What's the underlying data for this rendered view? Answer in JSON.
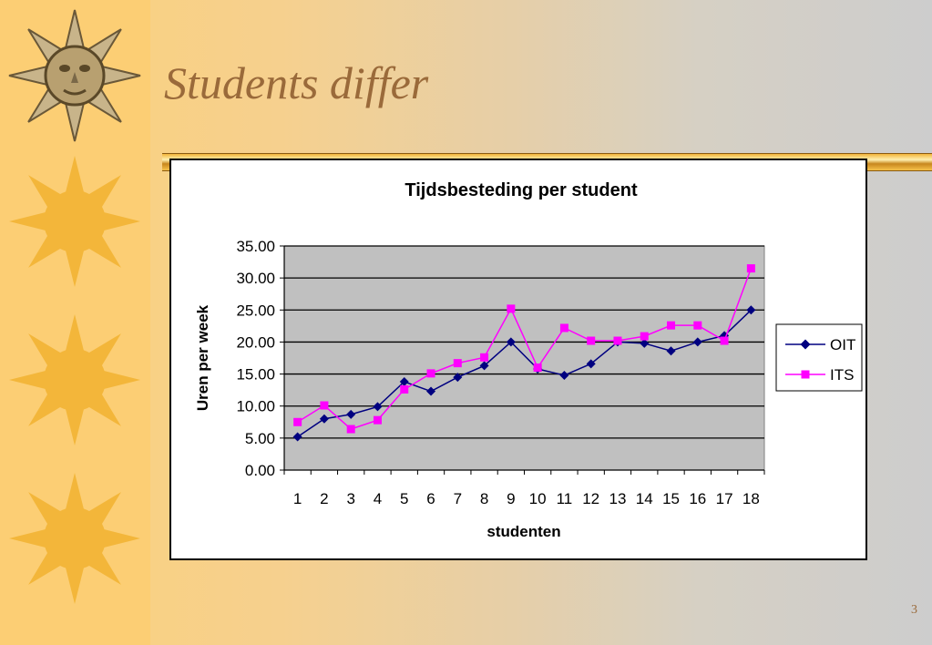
{
  "slide": {
    "title": "Students differ",
    "page_number": "3"
  },
  "colors": {
    "title": "#9a6a3a",
    "plot_bg": "#c0c0c0",
    "oit": "#000080",
    "its": "#ff00ff"
  },
  "icons": [
    "sun-face-icon",
    "sun-icon",
    "sun-icon",
    "sun-icon"
  ],
  "chart_data": {
    "type": "line",
    "title": "Tijdsbesteding per student",
    "xlabel": "studenten",
    "ylabel": "Uren per week",
    "categories": [
      "1",
      "2",
      "3",
      "4",
      "5",
      "6",
      "7",
      "8",
      "9",
      "10",
      "11",
      "12",
      "13",
      "14",
      "15",
      "16",
      "17",
      "18"
    ],
    "ylim": [
      0,
      35
    ],
    "yticks": [
      "0.00",
      "5.00",
      "10.00",
      "15.00",
      "20.00",
      "25.00",
      "30.00",
      "35.00"
    ],
    "grid": true,
    "legend": "right",
    "series": [
      {
        "name": "OIT",
        "marker": "diamond",
        "values": [
          5.2,
          8.0,
          8.7,
          9.9,
          13.8,
          12.3,
          14.5,
          16.3,
          20.0,
          15.8,
          14.8,
          16.6,
          20.0,
          19.8,
          18.6,
          20.0,
          21.0,
          25.0
        ]
      },
      {
        "name": "ITS",
        "marker": "square",
        "values": [
          7.5,
          10.1,
          6.4,
          7.8,
          12.6,
          15.1,
          16.7,
          17.6,
          25.2,
          16.0,
          22.2,
          20.2,
          20.2,
          20.9,
          22.6,
          22.6,
          20.2,
          31.5
        ]
      }
    ]
  }
}
